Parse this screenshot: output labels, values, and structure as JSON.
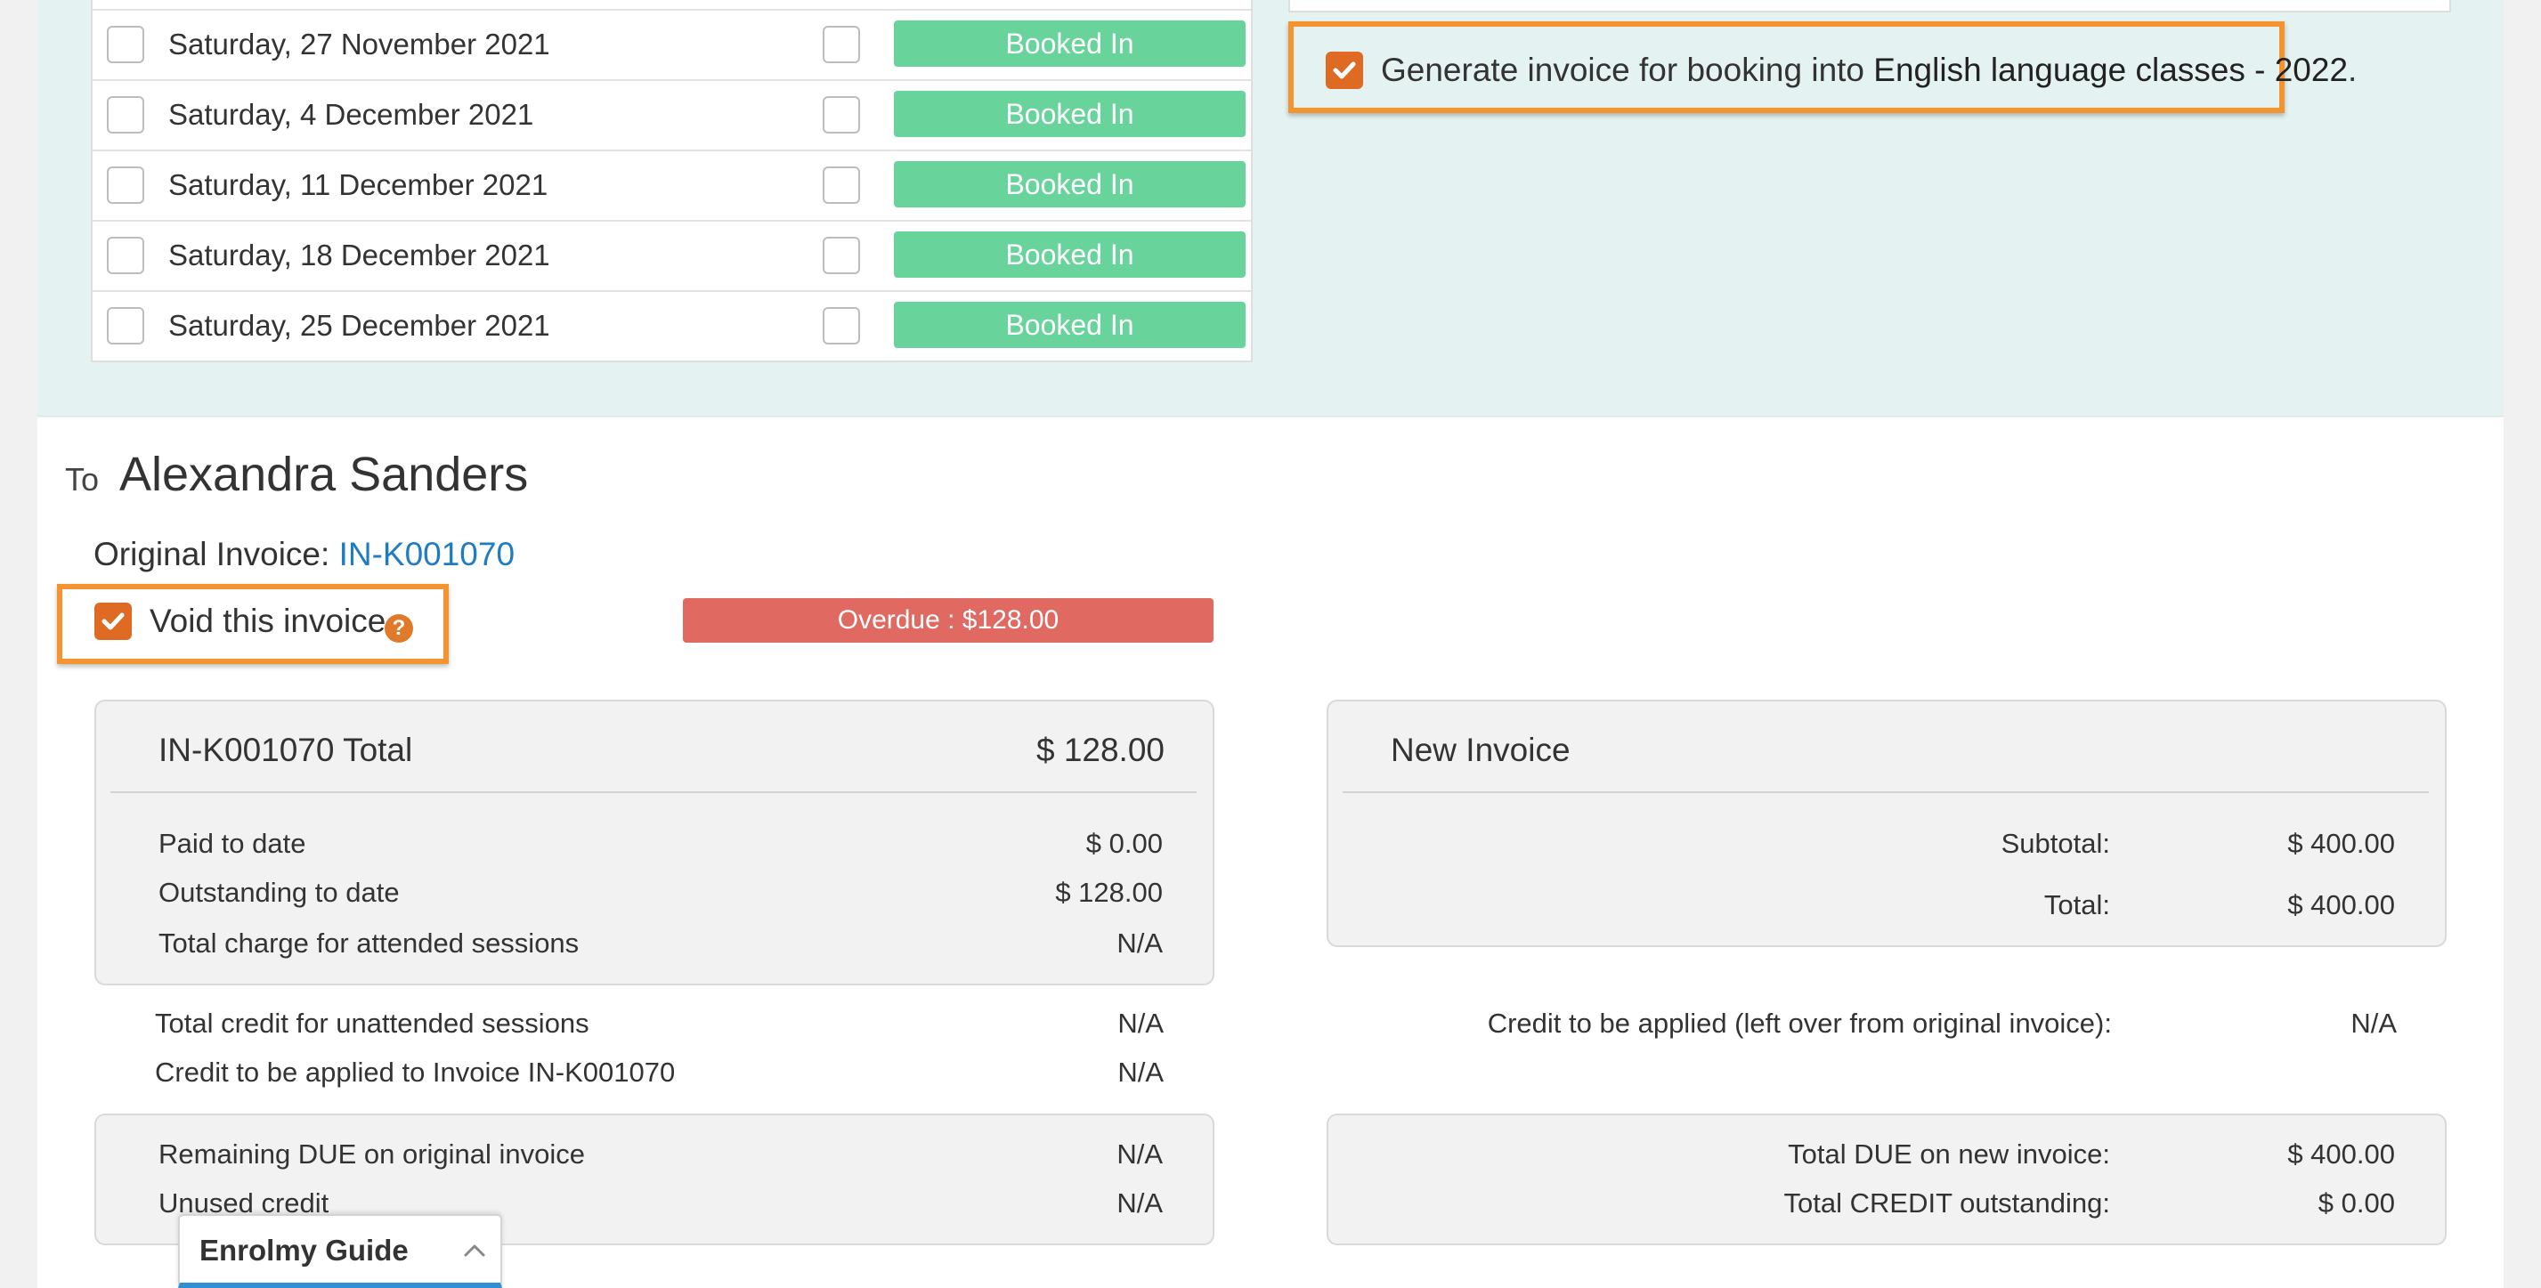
{
  "sessions": [
    {
      "date": "Saturday, 27 November 2021",
      "status": "Booked In"
    },
    {
      "date": "Saturday, 4 December 2021",
      "status": "Booked In"
    },
    {
      "date": "Saturday, 11 December 2021",
      "status": "Booked In"
    },
    {
      "date": "Saturday, 18 December 2021",
      "status": "Booked In"
    },
    {
      "date": "Saturday, 25 December 2021",
      "status": "Booked In"
    }
  ],
  "generate": {
    "prefix": "Generate invoice for booking into ",
    "course": "English language classes - 2022",
    "suffix": "."
  },
  "recipient": {
    "to_label": "To",
    "name": "Alexandra Sanders"
  },
  "original_invoice": {
    "label": "Original Invoice: ",
    "number": "IN-K001070"
  },
  "void": {
    "label": "Void this invoice.",
    "help": "?"
  },
  "overdue_badge": "Overdue : $128.00",
  "original_card": {
    "title": "IN-K001070 Total",
    "total": "$ 128.00",
    "rows": [
      {
        "label": "Paid to date",
        "value": "$ 0.00"
      },
      {
        "label": "Outstanding to date",
        "value": "$ 128.00"
      },
      {
        "label": "Total charge for attended sessions",
        "value": "N/A"
      }
    ]
  },
  "credit_rows": [
    {
      "label": "Total credit for unattended sessions",
      "value": "N/A"
    },
    {
      "label": "Credit to be applied to Invoice IN-K001070",
      "value": "N/A"
    }
  ],
  "remaining_card": {
    "rows": [
      {
        "label": "Remaining DUE on original invoice",
        "value": "N/A"
      },
      {
        "label": "Unused credit",
        "value": "N/A"
      }
    ]
  },
  "new_invoice_card": {
    "title": "New Invoice",
    "rows": [
      {
        "label": "Subtotal:",
        "value": "$ 400.00"
      },
      {
        "label": "Total:",
        "value": "$ 400.00"
      }
    ]
  },
  "new_credit": {
    "label": "Credit to be applied (left over from original invoice):",
    "value": "N/A"
  },
  "due_card": {
    "rows": [
      {
        "label": "Total DUE on new invoice:",
        "value": "$ 400.00"
      },
      {
        "label": "Total CREDIT outstanding:",
        "value": "$ 0.00"
      }
    ]
  },
  "guide": {
    "label": "Enrolmy Guide"
  },
  "colors": {
    "accent_orange": "#f39431",
    "checkbox_orange": "#de6a24",
    "booked_green": "#68d49b",
    "overdue_red": "#e06a62",
    "link_blue": "#1f7cc3",
    "teal_panel": "#e4f2f1"
  }
}
